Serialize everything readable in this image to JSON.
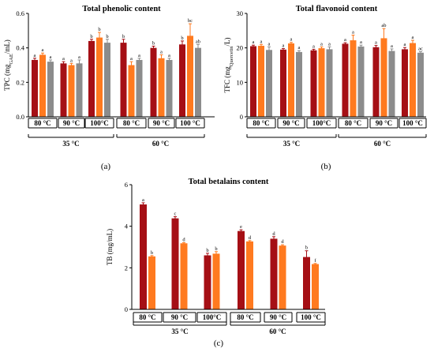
{
  "colors": {
    "series1": "#a50f15",
    "series2": "#ff7a1f",
    "series3": "#8c8c8c",
    "axis": "#000000"
  },
  "chart_data": [
    {
      "type": "bar",
      "panel_label": "(a)",
      "title": "Total phenolic content",
      "ylabel": "TPC (mgGAE/mL)",
      "ylabel_main": "TPC (mg",
      "ylabel_sub": "GAE",
      "ylabel_end": "/mL)",
      "ylim": [
        0,
        0.6
      ],
      "yticks": [
        "0.0",
        "0.2",
        "0.4",
        "0.6"
      ],
      "ytick_values": [
        0,
        0.2,
        0.4,
        0.6
      ],
      "categories": [
        "80 °C",
        "90 °C",
        "100°C",
        "80 °C",
        "90 °C",
        "100 °C"
      ],
      "groups": [
        {
          "label": "35 °C",
          "span": [
            0,
            2
          ]
        },
        {
          "label": "60 °C",
          "span": [
            3,
            5
          ]
        }
      ],
      "series": [
        {
          "values": [
            0.33,
            0.31,
            0.44,
            0.43,
            0.4,
            0.42
          ],
          "errors": [
            0.01,
            0.01,
            0.01,
            0.02,
            0.01,
            0.02
          ],
          "letters": [
            "a",
            "a",
            "b",
            "b",
            "b",
            "b"
          ]
        },
        {
          "values": [
            0.36,
            0.3,
            0.46,
            0.3,
            0.34,
            0.47
          ],
          "errors": [
            0.01,
            0.01,
            0.03,
            0.02,
            0.02,
            0.07
          ],
          "letters": [
            "a",
            "a",
            "b",
            "a",
            "a",
            "bc"
          ]
        },
        {
          "values": [
            0.32,
            0.31,
            0.43,
            0.33,
            0.33,
            0.4
          ],
          "errors": [
            0.01,
            0.02,
            0.02,
            0.01,
            0.01,
            0.02
          ],
          "letters": [
            "a",
            "a",
            "b",
            "a",
            "a",
            "ab"
          ]
        }
      ]
    },
    {
      "type": "bar",
      "panel_label": "(b)",
      "title": "Total flavonoid content",
      "ylabel": "TFC (mgQuercetin/L)",
      "ylabel_main": "TFC (mg",
      "ylabel_sub": "Quercetin",
      "ylabel_end": "/L)",
      "ylim": [
        0,
        30
      ],
      "yticks": [
        "0",
        "10",
        "20",
        "30"
      ],
      "ytick_values": [
        0,
        10,
        20,
        30
      ],
      "categories": [
        "80 °C",
        "90 °C",
        "100°C",
        "80 °C",
        "90 °C",
        "100 °C"
      ],
      "groups": [
        {
          "label": "35 °C",
          "span": [
            0,
            2
          ]
        },
        {
          "label": "60 °C",
          "span": [
            3,
            5
          ]
        }
      ],
      "series": [
        {
          "values": [
            20.5,
            19.5,
            19.3,
            21.2,
            20.2,
            19.6
          ],
          "errors": [
            0.3,
            0.3,
            0.3,
            0.3,
            0.5,
            0.5
          ],
          "letters": [
            "a",
            "a",
            "a",
            "a",
            "a",
            "a"
          ]
        },
        {
          "values": [
            20.6,
            21.3,
            19.9,
            22.2,
            22.8,
            21.4
          ],
          "errors": [
            0.4,
            0.3,
            0.4,
            1.5,
            2.8,
            0.8
          ],
          "letters": [
            "a",
            "a",
            "a",
            "a",
            "ab",
            "a"
          ]
        },
        {
          "values": [
            19.4,
            18.8,
            19.6,
            20.4,
            19.1,
            18.6
          ],
          "errors": [
            0.9,
            0.4,
            0.7,
            0.4,
            0.6,
            0.3
          ],
          "letters": [
            "a",
            "a",
            "a",
            "a",
            "a",
            "ac"
          ]
        }
      ]
    },
    {
      "type": "bar",
      "panel_label": "(c)",
      "title": "Total betalains content",
      "ylabel": "TB (mg/mL)",
      "ylabel_main": "TB (mg/mL)",
      "ylabel_sub": "",
      "ylabel_end": "",
      "ylim": [
        0,
        6
      ],
      "yticks": [
        "0",
        "2",
        "4",
        "6"
      ],
      "ytick_values": [
        0,
        2,
        4,
        6
      ],
      "categories": [
        "80 °C",
        "90 °C",
        "100°C",
        "80 °C",
        "90 °C",
        "100 °C"
      ],
      "groups": [
        {
          "label": "35 °C",
          "span": [
            0,
            2
          ]
        },
        {
          "label": "60 °C",
          "span": [
            3,
            5
          ]
        }
      ],
      "series": [
        {
          "values": [
            5.05,
            4.38,
            2.6,
            3.77,
            3.4,
            2.52
          ],
          "errors": [
            0.08,
            0.08,
            0.1,
            0.06,
            0.1,
            0.3
          ],
          "letters": [
            "a",
            "c",
            "b",
            "e",
            "d",
            "b"
          ]
        },
        {
          "values": [
            2.55,
            3.18,
            2.68,
            3.27,
            3.07,
            2.18
          ],
          "errors": [
            0.04,
            0.03,
            0.1,
            0.04,
            0.04,
            0.03
          ],
          "letters": [
            "b",
            "d",
            "b",
            "d",
            "d",
            "f"
          ]
        }
      ]
    }
  ]
}
